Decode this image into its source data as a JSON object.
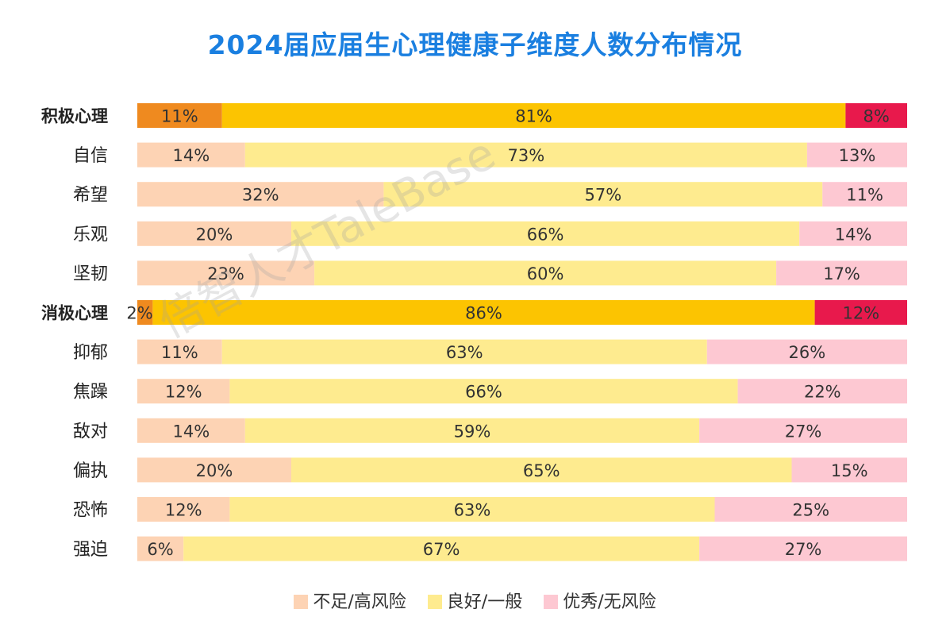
{
  "chart_data": {
    "type": "bar",
    "orientation": "horizontal",
    "stacked": true,
    "percent_stacked": true,
    "title": "2024届应届生心理健康子维度人数分布情况",
    "categories": [
      "积极心理",
      "自信",
      "希望",
      "乐观",
      "坚韧",
      "消极心理",
      "抑郁",
      "焦躁",
      "敌对",
      "偏执",
      "恐怖",
      "强迫"
    ],
    "group_headers": [
      "积极心理",
      "消极心理"
    ],
    "series": [
      {
        "name": "不足/高风险",
        "values": [
          11,
          14,
          32,
          20,
          23,
          2,
          11,
          12,
          14,
          20,
          12,
          6
        ]
      },
      {
        "name": "良好/一般",
        "values": [
          81,
          73,
          57,
          66,
          60,
          86,
          63,
          66,
          59,
          65,
          63,
          67
        ]
      },
      {
        "name": "优秀/无风险",
        "values": [
          8,
          13,
          11,
          14,
          17,
          12,
          26,
          22,
          27,
          15,
          25,
          27
        ]
      }
    ],
    "value_suffix": "%",
    "legend_position": "bottom",
    "colors": {
      "title": "#1a7fe0",
      "header": [
        "#ef8a1f",
        "#fcc401",
        "#e8194c"
      ],
      "normal": [
        "#fdd3b4",
        "#feeb8f",
        "#fdc8d2"
      ]
    }
  },
  "watermark": {
    "text": "倍智人才TaleBase"
  }
}
